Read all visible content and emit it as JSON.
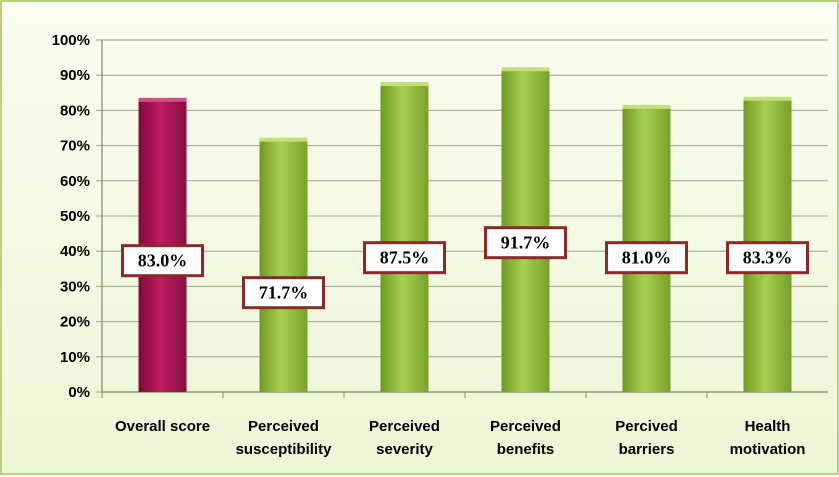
{
  "chart_data": {
    "type": "bar",
    "categories": [
      [
        "Overall score"
      ],
      [
        "Perceived",
        "susceptibility"
      ],
      [
        "Perceived",
        "severity"
      ],
      [
        "Perceived",
        "benefits"
      ],
      [
        "Percived",
        "barriers"
      ],
      [
        "Health",
        "motivation"
      ]
    ],
    "values": [
      83.0,
      71.7,
      87.5,
      91.7,
      81.0,
      83.3
    ],
    "data_labels": [
      "83.0%",
      "71.7%",
      "87.5%",
      "91.7%",
      "81.0%",
      "83.3%"
    ],
    "ylim": [
      0,
      100
    ],
    "yticks": [
      0,
      10,
      20,
      30,
      40,
      50,
      60,
      70,
      80,
      90,
      100
    ],
    "ytick_labels": [
      "0%",
      "10%",
      "20%",
      "30%",
      "40%",
      "50%",
      "60%",
      "70%",
      "80%",
      "90%",
      "100%"
    ],
    "grid": true,
    "legend": "none",
    "colors": {
      "highlight_bar": "#a0104f",
      "bar": "#8cb43a",
      "label_border": "#8b2a2a",
      "grid": "#9aa58a"
    }
  }
}
